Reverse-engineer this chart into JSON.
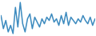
{
  "values": [
    60,
    20,
    45,
    10,
    30,
    5,
    85,
    25,
    100,
    35,
    10,
    50,
    65,
    20,
    55,
    40,
    25,
    50,
    35,
    55,
    45,
    65,
    40,
    50,
    30,
    60,
    35,
    70,
    30,
    55,
    45,
    35,
    50,
    40,
    60,
    45,
    35,
    55,
    30,
    50
  ],
  "line_color": "#3d8bbf",
  "bg_color": "#ffffff",
  "linewidth": 1.1
}
